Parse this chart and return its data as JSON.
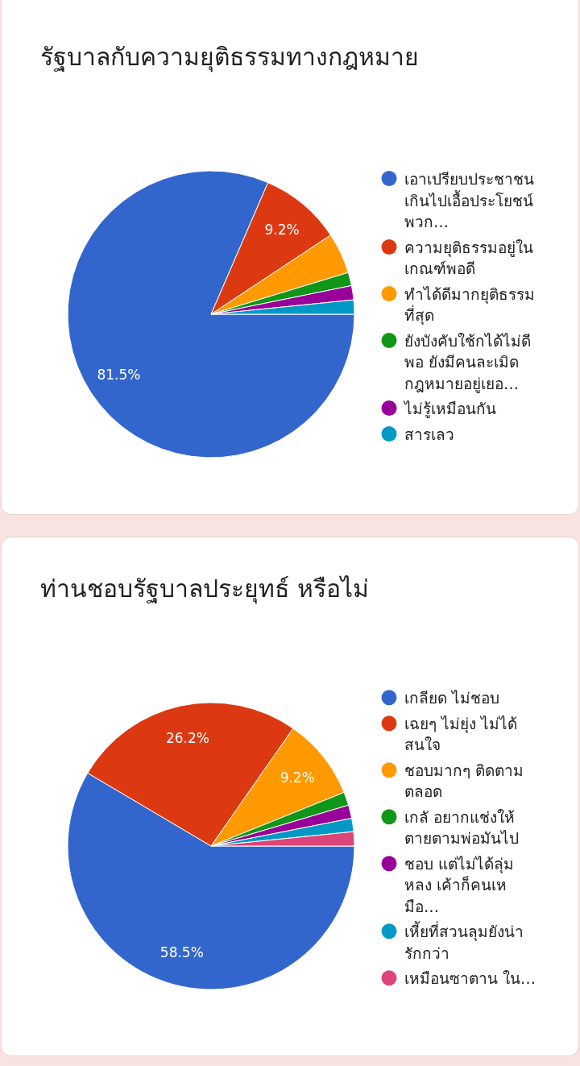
{
  "chart_data": [
    {
      "type": "pie",
      "title": "รัฐบาลกับความยุติธรรมทางกฎหมาย",
      "categories": [
        "เอาเปรียบประชาชนเกินไปเอื้อประโยชน์พวก…",
        "ความยุติธรรมอยู่ในเกณฑ์พอดี",
        "ทำได้ดีมากยุติธรรมที่สุด",
        "ยังบังคับใช้กได้ไม่ดีพอ ยังมีคนละเมิดกฎหมายอยู่เยอ…",
        "ไม่รู้เหมือนกัน",
        "สารเลว"
      ],
      "values": [
        81.5,
        9.2,
        4.6,
        1.5,
        1.6,
        1.6
      ],
      "colors": [
        "#3366cc",
        "#dc3912",
        "#ff9900",
        "#109618",
        "#990099",
        "#0099c6"
      ],
      "value_labels": [
        "81.5%",
        "9.2%",
        null,
        null,
        null,
        null
      ],
      "legend": "right"
    },
    {
      "type": "pie",
      "title": "ท่านชอบรัฐบาลประยุทธ์ หรือไม่",
      "categories": [
        "เกลียด ไม่ชอบ",
        "เฉยๆ ไม่ยุ่ง ไม่ได้สนใจ",
        "ชอบมากๆ ติดตามตลอด",
        "เกลั อยากแช่งให้ตายตามพ่อมันไป",
        "ชอบ แต่ไม่ได้ลุ่มหลง เค้าก็คนเหมือ…",
        "เหี้ยที่สวนลุมยังน่ารักกว่า",
        "เหมือนซาตาน ใน…"
      ],
      "values": [
        58.5,
        26.2,
        9.2,
        1.5,
        1.5,
        1.5,
        1.6
      ],
      "colors": [
        "#3366cc",
        "#dc3912",
        "#ff9900",
        "#109618",
        "#990099",
        "#0099c6",
        "#dd4477"
      ],
      "value_labels": [
        "58.5%",
        "26.2%",
        "9.2%",
        null,
        null,
        null,
        null
      ],
      "legend": "right"
    }
  ]
}
